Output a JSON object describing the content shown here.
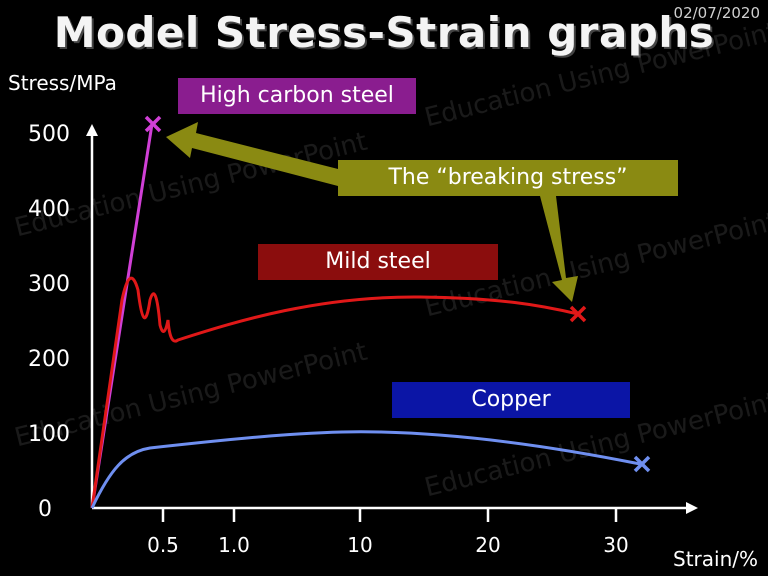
{
  "date": "02/07/2020",
  "title": "Model Stress-Strain graphs",
  "watermark": "Education Using PowerPoint",
  "chart_data": {
    "type": "line",
    "title": "Model Stress-Strain graphs",
    "xlabel": "Strain/%",
    "ylabel": "Stress/MPa",
    "x_ticks": [
      "0.5",
      "1.0",
      "10",
      "20",
      "30"
    ],
    "y_ticks": [
      "0",
      "100",
      "200",
      "300",
      "400",
      "500"
    ],
    "ylim": [
      0,
      520
    ],
    "grid": false,
    "series": [
      {
        "name": "High carbon steel",
        "color": "#d03fd6",
        "x": [
          "0",
          "0.5"
        ],
        "y": [
          0,
          515
        ]
      },
      {
        "name": "Mild steel",
        "color": "#e01818",
        "x": [
          "0",
          "0.3",
          "0.5",
          "1.0",
          "10",
          "20",
          "28"
        ],
        "y": [
          0,
          330,
          250,
          240,
          285,
          295,
          275
        ]
      },
      {
        "name": "Copper",
        "color": "#6f8ff0",
        "x": [
          "0",
          "0.5",
          "1.0",
          "10",
          "20",
          "33"
        ],
        "y": [
          0,
          100,
          110,
          125,
          115,
          80
        ]
      }
    ],
    "annotations": [
      {
        "text": "High carbon steel",
        "bg": "#8a1d8f"
      },
      {
        "text": "Mild steel",
        "bg": "#8b0d0d"
      },
      {
        "text": "Copper",
        "bg": "#0b15a6"
      },
      {
        "text": "The “breaking stress”",
        "bg": "#8a8a12"
      }
    ]
  }
}
